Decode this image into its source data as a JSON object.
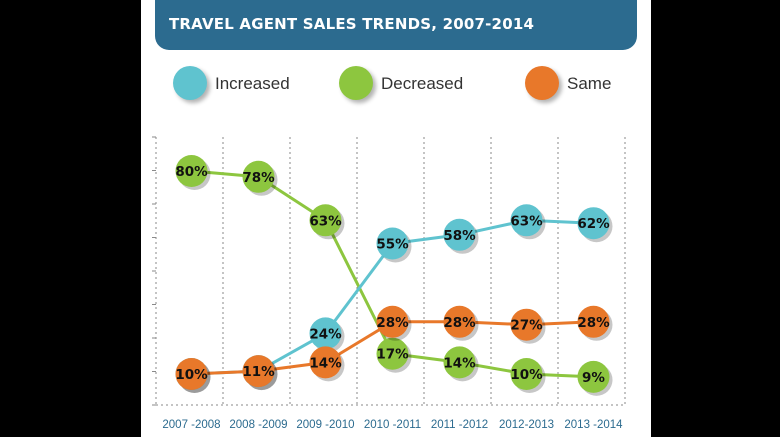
{
  "chart_data": {
    "type": "line",
    "title": "TRAVEL AGENT SALES TRENDS, 2007-2014",
    "categories": [
      "2007 -2008",
      "2008 -2009",
      "2009 -2010",
      "2010 -2011",
      "2011 -2012",
      "2012-2013",
      "2013 -2014"
    ],
    "ylim": [
      0,
      100
    ],
    "grid": true,
    "legend_position": "top",
    "series": [
      {
        "name": "Increased",
        "color": "#5fc3cf",
        "values": [
          10,
          11,
          24,
          55,
          58,
          63,
          62
        ],
        "labels": [
          "10%",
          "11%",
          "24%",
          "55%",
          "58%",
          "63%",
          "62%"
        ]
      },
      {
        "name": "Decreased",
        "color": "#8dc63f",
        "values": [
          80,
          78,
          63,
          17,
          14,
          10,
          9
        ],
        "labels": [
          "80%",
          "78%",
          "63%",
          "17%",
          "14%",
          "10%",
          "9%"
        ]
      },
      {
        "name": "Same",
        "color": "#e8782a",
        "values": [
          10,
          11,
          14,
          28,
          28,
          27,
          28
        ],
        "labels": [
          "10%",
          "11%",
          "14%",
          "28%",
          "28%",
          "27%",
          "28%"
        ]
      }
    ]
  }
}
